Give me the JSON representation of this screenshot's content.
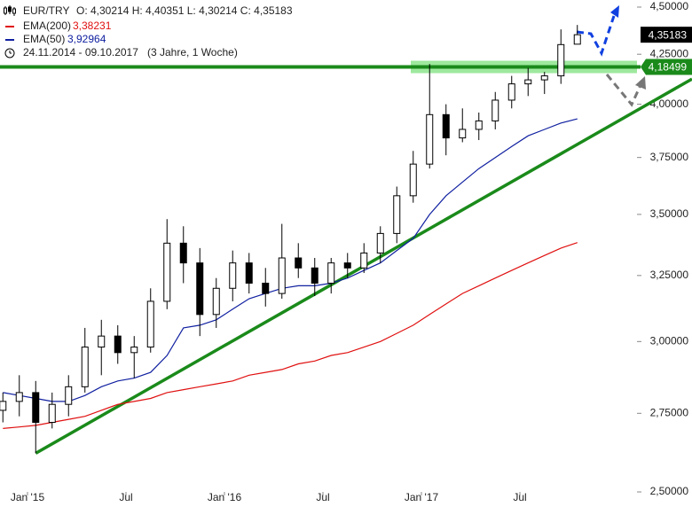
{
  "header": {
    "symbol": "EUR/TRY",
    "ohlc": "O: 4,30214   H: 4,40351   L: 4,30214   C: 4,35183",
    "range": "24.11.2014 - 09.10.2017",
    "period": "(3 Jahre, 1 Woche)"
  },
  "chart_data": {
    "type": "candlestick",
    "log_scale": true,
    "x": [
      "2014-11",
      "2014-12",
      "2015-01",
      "2015-02",
      "2015-03",
      "2015-04",
      "2015-05",
      "2015-06",
      "2015-07",
      "2015-08",
      "2015-09",
      "2015-10",
      "2015-11",
      "2015-12",
      "2016-01",
      "2016-02",
      "2016-03",
      "2016-04",
      "2016-05",
      "2016-06",
      "2016-07",
      "2016-08",
      "2016-09",
      "2016-10",
      "2016-11",
      "2016-12",
      "2017-01",
      "2017-02",
      "2017-03",
      "2017-04",
      "2017-05",
      "2017-06",
      "2017-07",
      "2017-08",
      "2017-09",
      "2017-10"
    ],
    "open": [
      2.76,
      2.79,
      2.82,
      2.72,
      2.78,
      2.84,
      2.98,
      3.02,
      2.96,
      2.98,
      3.15,
      3.38,
      3.3,
      3.1,
      3.2,
      3.3,
      3.22,
      3.18,
      3.32,
      3.28,
      3.22,
      3.3,
      3.28,
      3.34,
      3.42,
      3.58,
      3.72,
      3.95,
      3.84,
      3.88,
      3.92,
      4.02,
      4.1,
      4.12,
      4.14,
      4.30214
    ],
    "high": [
      2.82,
      2.88,
      2.86,
      2.82,
      2.88,
      3.05,
      3.08,
      3.06,
      3.02,
      3.2,
      3.48,
      3.45,
      3.36,
      3.24,
      3.35,
      3.34,
      3.28,
      3.46,
      3.38,
      3.32,
      3.32,
      3.34,
      3.38,
      3.45,
      3.62,
      3.78,
      4.2,
      4.0,
      3.98,
      3.96,
      4.06,
      4.14,
      4.18,
      4.16,
      4.38,
      4.40351
    ],
    "low": [
      2.72,
      2.74,
      2.62,
      2.7,
      2.74,
      2.82,
      2.88,
      2.92,
      2.87,
      2.96,
      3.12,
      3.22,
      3.02,
      3.05,
      3.15,
      3.18,
      3.13,
      3.16,
      3.24,
      3.17,
      3.18,
      3.24,
      3.26,
      3.3,
      3.38,
      3.55,
      3.7,
      3.76,
      3.82,
      3.83,
      3.88,
      3.98,
      4.04,
      4.05,
      4.1,
      4.30214
    ],
    "close": [
      2.79,
      2.82,
      2.72,
      2.78,
      2.84,
      2.98,
      3.02,
      2.96,
      2.98,
      3.15,
      3.38,
      3.3,
      3.1,
      3.2,
      3.3,
      3.22,
      3.18,
      3.32,
      3.28,
      3.22,
      3.3,
      3.28,
      3.34,
      3.42,
      3.58,
      3.72,
      3.95,
      3.84,
      3.88,
      3.92,
      4.02,
      4.1,
      4.12,
      4.14,
      4.3,
      4.35183
    ],
    "series": [
      {
        "name": "EMA(200)",
        "color": "#e01010",
        "last_label": "3,38231",
        "values": [
          2.7,
          2.705,
          2.71,
          2.72,
          2.73,
          2.74,
          2.76,
          2.78,
          2.79,
          2.8,
          2.82,
          2.83,
          2.84,
          2.85,
          2.86,
          2.88,
          2.89,
          2.9,
          2.92,
          2.93,
          2.95,
          2.96,
          2.98,
          3.0,
          3.03,
          3.06,
          3.1,
          3.14,
          3.18,
          3.21,
          3.24,
          3.27,
          3.3,
          3.33,
          3.36,
          3.38231
        ]
      },
      {
        "name": "EMA(50)",
        "color": "#1020a0",
        "last_label": "3,92964",
        "values": [
          2.82,
          2.81,
          2.8,
          2.79,
          2.79,
          2.81,
          2.84,
          2.86,
          2.87,
          2.89,
          2.95,
          3.05,
          3.06,
          3.08,
          3.12,
          3.16,
          3.18,
          3.2,
          3.21,
          3.21,
          3.22,
          3.24,
          3.27,
          3.3,
          3.35,
          3.4,
          3.5,
          3.58,
          3.64,
          3.7,
          3.75,
          3.8,
          3.85,
          3.88,
          3.91,
          3.92964
        ]
      }
    ],
    "xlim": [
      "2014-11",
      "2017-10"
    ],
    "xticks": [
      {
        "value": "2015-01",
        "label": "Jan '15"
      },
      {
        "value": "2015-07",
        "label": "Jul"
      },
      {
        "value": "2016-01",
        "label": "Jan '16"
      },
      {
        "value": "2016-07",
        "label": "Jul"
      },
      {
        "value": "2017-01",
        "label": "Jan '17"
      },
      {
        "value": "2017-07",
        "label": "Jul"
      }
    ],
    "ylim": [
      2.5,
      4.5
    ],
    "yticks": [
      {
        "value": 2.5,
        "label": "2,50000"
      },
      {
        "value": 2.75,
        "label": "2,75000"
      },
      {
        "value": 3,
        "label": "3,00000"
      },
      {
        "value": 3.25,
        "label": "3,25000"
      },
      {
        "value": 3.5,
        "label": "3,50000"
      },
      {
        "value": 3.75,
        "label": "3,75000"
      },
      {
        "value": 4,
        "label": "4,00000"
      },
      {
        "value": 4.25,
        "label": "4,25000"
      },
      {
        "value": 4.5,
        "label": "4,50000"
      }
    ],
    "support": {
      "value": 4.18499,
      "label": "4,18499",
      "color": "#1a8a1a"
    },
    "last_price": {
      "value": 4.35183,
      "label": "4,35183"
    },
    "trendline": {
      "x": [
        "2015-01",
        "2017-10"
      ],
      "y": [
        2.62,
        3.81
      ],
      "color": "#1a8a1a"
    }
  }
}
